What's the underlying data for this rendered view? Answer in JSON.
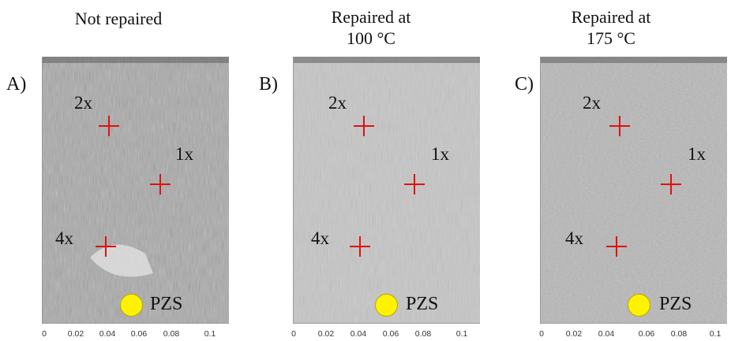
{
  "panels": [
    {
      "title": [
        "Not repaired"
      ],
      "label": "A)",
      "marks": [
        {
          "label": "2x"
        },
        {
          "label": "1x"
        },
        {
          "label": "4x"
        }
      ],
      "source": "PZS",
      "ticks": [
        "0",
        "0.02",
        "0.04",
        "0.06",
        "0.08",
        "0.1"
      ]
    },
    {
      "title": [
        "Repaired at",
        "100 °C"
      ],
      "label": "B)",
      "marks": [
        {
          "label": "2x"
        },
        {
          "label": "1x"
        },
        {
          "label": "4x"
        }
      ],
      "source": "PZS",
      "ticks": [
        "0",
        "0.02",
        "0.04",
        "0.06",
        "0.08",
        "0.1"
      ]
    },
    {
      "title": [
        "Repaired at",
        "175 °C"
      ],
      "label": "C)",
      "marks": [
        {
          "label": "2x"
        },
        {
          "label": "1x"
        },
        {
          "label": "4x"
        }
      ],
      "source": "PZS",
      "ticks": [
        "0",
        "0.02",
        "0.04",
        "0.06",
        "0.08",
        "0.1"
      ]
    }
  ],
  "colors": {
    "cross": "#e01010",
    "source": "#fff200"
  }
}
